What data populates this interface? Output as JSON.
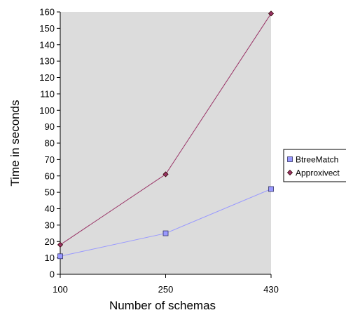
{
  "chart_data": {
    "type": "line",
    "title": "",
    "xlabel": "Number of schemas",
    "ylabel": "Time in seconds",
    "categories": [
      "100",
      "250",
      "430"
    ],
    "ylim": [
      0,
      160
    ],
    "yticks": [
      0,
      10,
      20,
      30,
      40,
      50,
      60,
      70,
      80,
      90,
      100,
      110,
      120,
      130,
      140,
      150,
      160
    ],
    "grid": false,
    "legend_position": "right",
    "series": [
      {
        "name": "BtreeMatch",
        "values": [
          11,
          25,
          52
        ],
        "color": "#9999ff",
        "marker": "square"
      },
      {
        "name": "Approxivect",
        "values": [
          18,
          61,
          159
        ],
        "color": "#993366",
        "marker": "diamond"
      }
    ],
    "colors": {
      "plot_background": "#dcdcdc"
    }
  }
}
